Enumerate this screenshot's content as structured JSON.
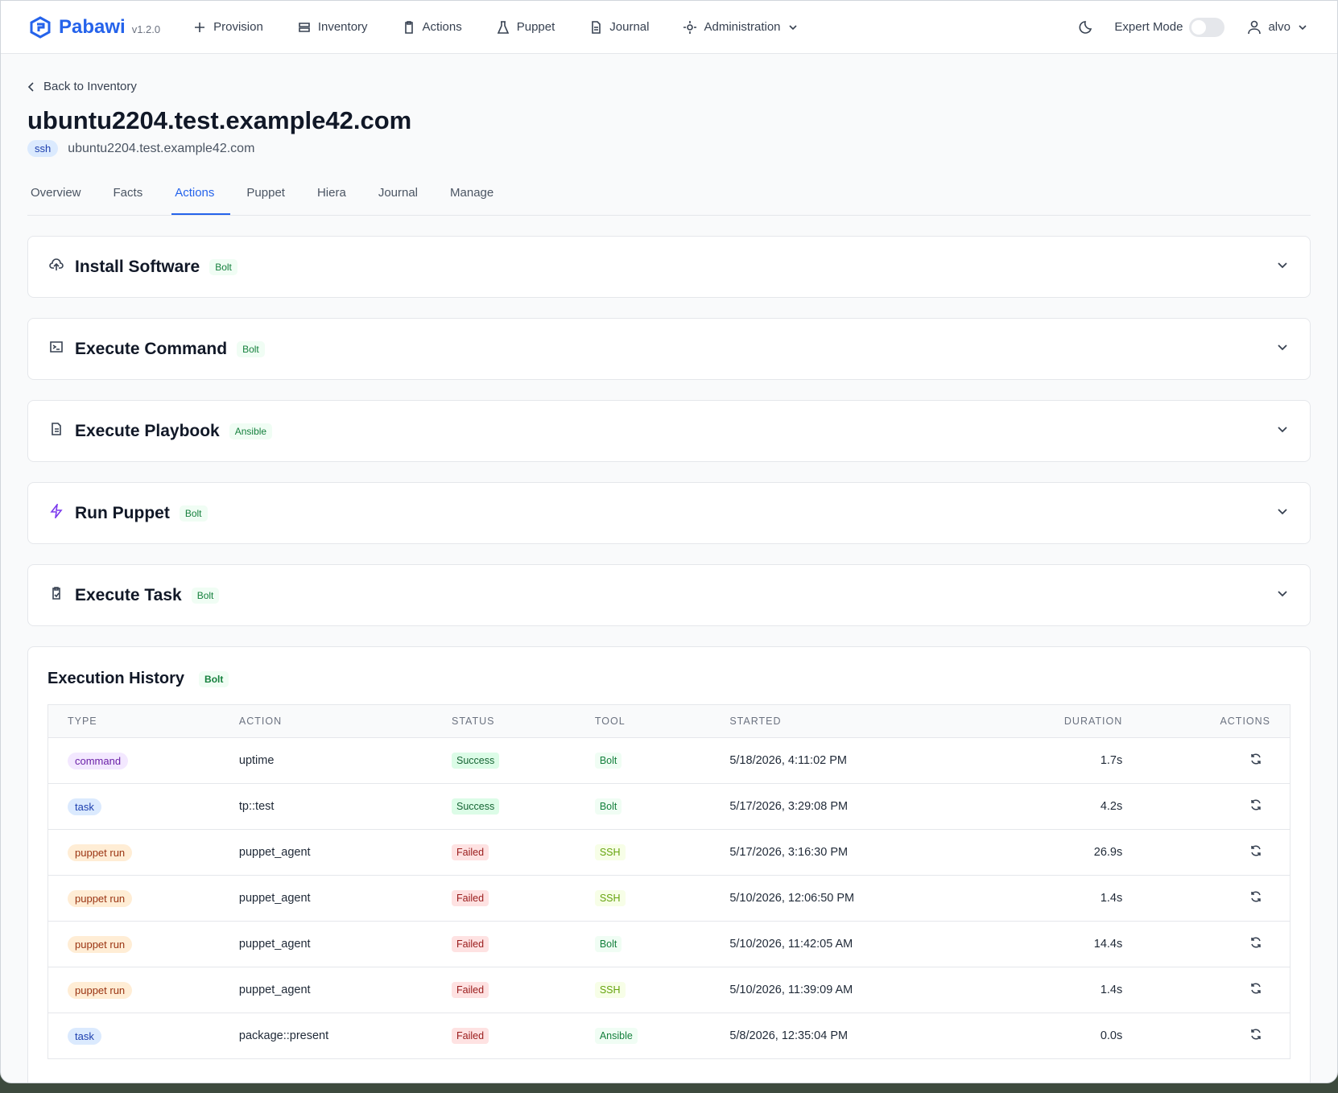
{
  "header": {
    "brand": "Pabawi",
    "version": "v1.2.0",
    "nav": [
      "Provision",
      "Inventory",
      "Actions",
      "Puppet",
      "Journal",
      "Administration"
    ],
    "expert_mode": "Expert Mode",
    "user": "alvo"
  },
  "page": {
    "back_link": "Back to Inventory",
    "title": "ubuntu2204.test.example42.com",
    "transport": "ssh",
    "hostname": "ubuntu2204.test.example42.com",
    "tabs": [
      "Overview",
      "Facts",
      "Actions",
      "Puppet",
      "Hiera",
      "Journal",
      "Manage"
    ],
    "active_tab": 2
  },
  "sections": [
    {
      "title": "Install Software",
      "badge": "Bolt"
    },
    {
      "title": "Execute Command",
      "badge": "Bolt"
    },
    {
      "title": "Execute Playbook",
      "badge": "Ansible"
    },
    {
      "title": "Run Puppet",
      "badge": "Bolt"
    },
    {
      "title": "Execute Task",
      "badge": "Bolt"
    }
  ],
  "history": {
    "title": "Execution History",
    "badge": "Bolt",
    "columns": [
      "TYPE",
      "ACTION",
      "STATUS",
      "TOOL",
      "STARTED",
      "DURATION",
      "ACTIONS"
    ],
    "rows": [
      [
        "command",
        "uptime",
        "Success",
        "Bolt",
        "5/18/2026, 4:11:02 PM",
        "1.7s"
      ],
      [
        "task",
        "tp::test",
        "Success",
        "Bolt",
        "5/17/2026, 3:29:08 PM",
        "4.2s"
      ],
      [
        "puppet run",
        "puppet_agent",
        "Failed",
        "SSH",
        "5/17/2026, 3:16:30 PM",
        "26.9s"
      ],
      [
        "puppet run",
        "puppet_agent",
        "Failed",
        "SSH",
        "5/10/2026, 12:06:50 PM",
        "1.4s"
      ],
      [
        "puppet run",
        "puppet_agent",
        "Failed",
        "Bolt",
        "5/10/2026, 11:42:05 AM",
        "14.4s"
      ],
      [
        "puppet run",
        "puppet_agent",
        "Failed",
        "SSH",
        "5/10/2026, 11:39:09 AM",
        "1.4s"
      ],
      [
        "task",
        "package::present",
        "Failed",
        "Ansible",
        "5/8/2026, 12:35:04 PM",
        "0.0s"
      ]
    ]
  }
}
